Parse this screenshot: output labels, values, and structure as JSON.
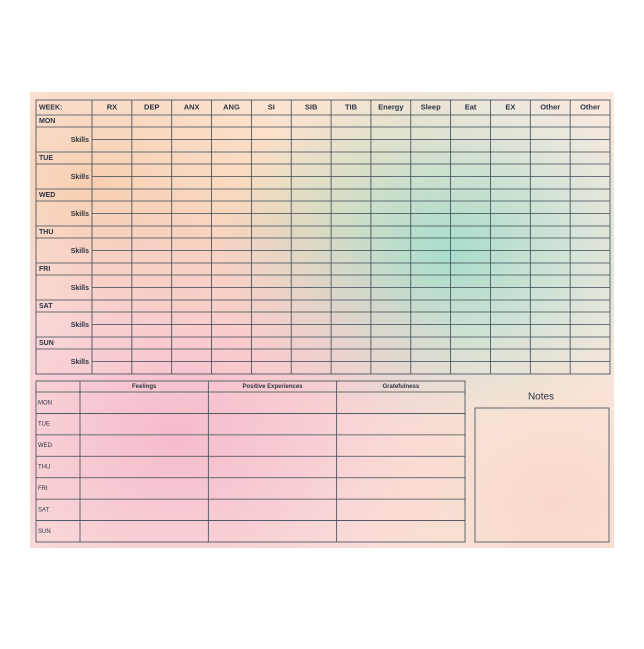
{
  "tracker": {
    "corner": "WEEK:",
    "columns": [
      "RX",
      "DEP",
      "ANX",
      "ANG",
      "SI",
      "SIB",
      "TIB",
      "Energy",
      "Sleep",
      "Eat",
      "EX",
      "Other",
      "Other"
    ],
    "days": [
      "MON",
      "TUE",
      "WED",
      "THU",
      "FRI",
      "SAT",
      "SUN"
    ],
    "sub_row": "Skills"
  },
  "journal": {
    "columns": [
      "Feelings",
      "Positive Experiences",
      "Gratefulness"
    ],
    "days": [
      "MON",
      "TUE",
      "WED",
      "THU",
      "FRI",
      "SAT",
      "SUN"
    ]
  },
  "notes": {
    "title": "Notes"
  }
}
